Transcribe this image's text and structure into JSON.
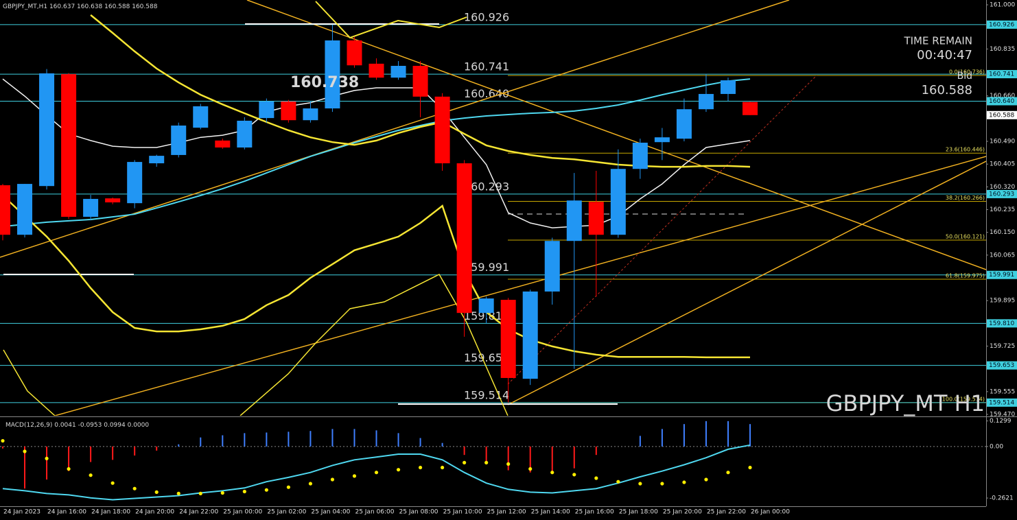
{
  "chart_data": [
    {
      "type": "candlestick",
      "title": "GBPJPY_MT,H1",
      "categories": [
        "24 Jan 2023",
        null,
        "24 Jan 16:00",
        null,
        "24 Jan 18:00",
        null,
        "24 Jan 20:00",
        null,
        "24 Jan 22:00",
        null,
        "25 Jan 00:00",
        null,
        "25 Jan 02:00",
        null,
        "25 Jan 04:00",
        null,
        "25 Jan 06:00",
        null,
        "25 Jan 08:00",
        null,
        "25 Jan 10:00",
        null,
        "25 Jan 12:00",
        null,
        "25 Jan 14:00",
        null,
        "25 Jan 16:00",
        null,
        "25 Jan 18:00",
        null,
        "25 Jan 20:00",
        null,
        "25 Jan 22:00",
        null,
        "26 Jan 00:00"
      ],
      "open": [
        160.326,
        160.141,
        160.323,
        160.741,
        160.208,
        160.277,
        160.259,
        160.408,
        160.439,
        160.541,
        160.493,
        160.467,
        160.577,
        160.639,
        160.569,
        160.613,
        160.867,
        160.78,
        160.728,
        160.772,
        160.657,
        160.408,
        159.849,
        159.898,
        159.603,
        159.929,
        160.118,
        160.264,
        160.141,
        160.387,
        160.487,
        160.5,
        160.61,
        160.667,
        160.637
      ],
      "high": [
        160.331,
        160.331,
        160.76,
        160.745,
        160.29,
        160.28,
        160.42,
        160.44,
        160.56,
        160.63,
        160.5,
        160.58,
        160.65,
        160.645,
        160.64,
        160.926,
        160.88,
        160.8,
        160.79,
        160.79,
        160.67,
        160.42,
        159.91,
        159.905,
        159.936,
        160.13,
        160.372,
        160.38,
        160.46,
        160.5,
        160.54,
        160.65,
        160.741,
        160.728,
        160.638
      ],
      "low": [
        160.12,
        160.131,
        160.31,
        160.2,
        160.195,
        160.255,
        160.24,
        160.395,
        160.43,
        160.535,
        160.462,
        160.46,
        160.56,
        160.56,
        160.56,
        160.6,
        160.765,
        160.72,
        160.72,
        160.58,
        160.38,
        159.76,
        159.81,
        159.514,
        159.58,
        159.88,
        159.64,
        159.91,
        160.13,
        160.35,
        160.42,
        160.49,
        160.6,
        160.64,
        160.588
      ],
      "close": [
        160.141,
        160.331,
        160.744,
        160.208,
        160.275,
        160.262,
        160.413,
        160.436,
        160.549,
        160.621,
        160.467,
        160.567,
        160.639,
        160.569,
        160.613,
        160.867,
        160.774,
        160.728,
        160.772,
        160.657,
        160.408,
        159.849,
        159.903,
        159.606,
        159.929,
        160.118,
        160.269,
        160.141,
        160.387,
        160.485,
        160.505,
        160.61,
        160.667,
        160.718,
        160.588
      ],
      "up_color": "#2196f3",
      "down_color": "#ff0000",
      "series": [
        {
          "color": "#f2f2f2",
          "values": [
            160.723,
            160.659,
            160.587,
            160.518,
            160.493,
            160.472,
            160.467,
            160.467,
            160.485,
            160.505,
            160.513,
            160.531,
            160.6,
            160.621,
            160.634,
            160.659,
            160.68,
            160.69,
            160.69,
            160.69,
            160.608,
            160.505,
            160.403,
            160.223,
            160.185,
            160.167,
            160.172,
            160.177,
            160.211,
            160.275,
            160.331,
            160.403,
            160.467,
            160.48,
            160.493
          ]
        },
        {
          "color": "#4fd8f0",
          "values": [
            160.172,
            160.18,
            160.188,
            160.193,
            160.198,
            160.208,
            160.218,
            160.241,
            160.264,
            160.288,
            160.313,
            160.341,
            160.372,
            160.403,
            160.434,
            160.459,
            160.485,
            160.508,
            160.531,
            160.549,
            160.567,
            160.577,
            160.585,
            160.59,
            160.595,
            160.598,
            160.603,
            160.613,
            160.626,
            160.644,
            160.664,
            160.682,
            160.7,
            160.715,
            160.723
          ]
        },
        {
          "color": "#f5e533",
          "values": [
            null,
            null,
            null,
            null,
            160.962,
            160.895,
            160.826,
            160.762,
            160.71,
            160.664,
            160.628,
            160.595,
            160.562,
            160.531,
            160.505,
            160.487,
            160.477,
            160.493,
            160.521,
            160.544,
            160.562,
            160.518,
            160.475,
            160.454,
            160.439,
            160.428,
            160.423,
            160.413,
            160.403,
            160.398,
            160.395,
            160.395,
            160.398,
            160.398,
            160.395
          ]
        },
        {
          "color": "#f5e533",
          "values": [
            160.288,
            160.211,
            160.134,
            160.044,
            159.942,
            159.852,
            159.793,
            159.78,
            159.78,
            159.788,
            159.801,
            159.826,
            159.878,
            159.916,
            159.98,
            160.031,
            160.083,
            160.108,
            160.134,
            160.185,
            160.249,
            160.006,
            159.852,
            159.788,
            159.749,
            159.724,
            159.706,
            159.693,
            159.685,
            159.685,
            159.685,
            159.685,
            159.683,
            159.683,
            159.683
          ]
        }
      ],
      "levels": [
        {
          "value": 160.926,
          "label": "160.926"
        },
        {
          "value": 160.741,
          "label": "160.741"
        },
        {
          "value": 160.64,
          "label": "160.640"
        },
        {
          "value": 160.293,
          "label": "160.293"
        },
        {
          "value": 159.991,
          "label": "159.991"
        },
        {
          "value": 159.81,
          "label": "159.810"
        },
        {
          "value": 159.653,
          "label": "159.653"
        },
        {
          "value": 159.514,
          "label": "159.514"
        }
      ],
      "level_color": "#3fd0e0",
      "fib_levels": [
        {
          "value": 160.736,
          "label": "0.0(160.736)"
        },
        {
          "value": 160.446,
          "label": "23.6(160.446)"
        },
        {
          "value": 160.266,
          "label": "38.2(160.266)"
        },
        {
          "value": 160.121,
          "label": "50.0(160.121)"
        },
        {
          "value": 159.975,
          "label": "61.8(159.975)"
        },
        {
          "value": 159.514,
          "label": "100.0(159.514)"
        }
      ],
      "fib_color": "#c8a800",
      "annotation": 160.738,
      "time_remain_label": "TIME REMAIN",
      "time_remain": "00:40:47",
      "bid_label": "Bid",
      "bid": 160.588,
      "watermark": "GBPJPY_MT H1",
      "ylim": [
        159.465,
        161.018
      ],
      "yticks": [
        {
          "value": 161.0,
          "label": "161.000"
        },
        160.835,
        {
          "value": 160.66,
          "label": "160.660"
        },
        {
          "value": 160.49,
          "label": "160.490"
        },
        160.405,
        {
          "value": 160.32,
          "label": "160.320"
        },
        160.235,
        {
          "value": 160.15,
          "label": "160.150"
        },
        160.065,
        159.895,
        159.725,
        159.555,
        {
          "value": 159.47,
          "label": "159.470"
        }
      ]
    },
    {
      "type": "macd",
      "title": "MACD(12,26,9)",
      "indicator_values": [
        0.0041,
        -0.0953,
        0.0994,
        {
          "value": 0,
          "label": "0.0000"
        }
      ],
      "bars": [
        -0.01,
        -0.214,
        -0.168,
        -0.125,
        -0.079,
        -0.068,
        -0.046,
        -0.021,
        0.011,
        0.046,
        0.057,
        0.068,
        0.071,
        0.075,
        0.079,
        0.089,
        0.089,
        0.082,
        0.068,
        0.043,
        0.018,
        -0.043,
        -0.089,
        -0.121,
        -0.132,
        -0.132,
        -0.111,
        -0.043,
        0,
        0.054,
        0.089,
        0.114,
        0.129,
        0.129,
        0.114
      ],
      "up_color": "#3f7fff",
      "down_color": "#ff1a1a",
      "series": [
        {
          "color": "#4fd8f0",
          "values": [
            -0.214,
            -0.225,
            -0.239,
            -0.246,
            -0.261,
            -0.271,
            -0.264,
            -0.257,
            -0.25,
            -0.236,
            -0.225,
            -0.211,
            -0.179,
            -0.157,
            -0.132,
            -0.096,
            -0.068,
            -0.054,
            -0.039,
            -0.039,
            -0.068,
            -0.132,
            -0.186,
            -0.218,
            -0.232,
            -0.236,
            -0.225,
            -0.214,
            -0.186,
            -0.154,
            -0.125,
            -0.093,
            -0.057,
            -0.014,
            0.007
          ]
        },
        {
          "color": "#ffee00",
          "values": [
            0.029,
            -0.025,
            -0.061,
            -0.114,
            -0.146,
            -0.186,
            -0.214,
            -0.232,
            -0.239,
            -0.239,
            -0.236,
            -0.229,
            -0.221,
            -0.207,
            -0.189,
            -0.168,
            -0.15,
            -0.132,
            -0.118,
            -0.107,
            -0.107,
            -0.082,
            -0.082,
            -0.089,
            -0.114,
            -0.132,
            -0.143,
            -0.161,
            -0.179,
            -0.189,
            -0.189,
            -0.182,
            -0.168,
            -0.132,
            -0.107
          ]
        }
      ],
      "ylim": [
        -0.304,
        0.146
      ],
      "yticks": [
        0.1299,
        {
          "value": 0,
          "label": "0.00"
        },
        -0.2621
      ]
    }
  ]
}
